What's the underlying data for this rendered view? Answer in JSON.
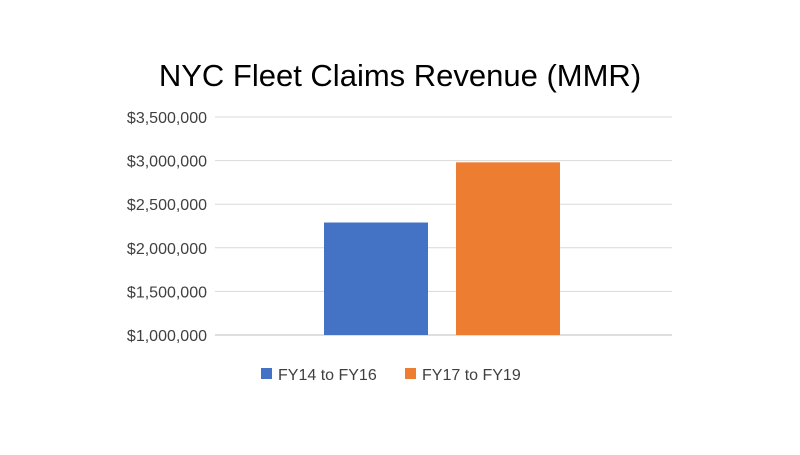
{
  "chart_data": {
    "type": "bar",
    "title": "NYC Fleet Claims Revenue (MMR)",
    "xlabel": "",
    "ylabel": "",
    "ylim": [
      1000000,
      3500000
    ],
    "yticks": [
      1000000,
      1500000,
      2000000,
      2500000,
      3000000,
      3500000
    ],
    "ytick_labels": [
      "$1,000,000",
      "$1,500,000",
      "$2,000,000",
      "$2,500,000",
      "$3,000,000",
      "$3,500,000"
    ],
    "grid": true,
    "legend_placement": "bottom",
    "series": [
      {
        "name": "FY14 to FY16",
        "values": [
          2290000
        ],
        "color": "#4472C4"
      },
      {
        "name": "FY17 to FY19",
        "values": [
          2980000
        ],
        "color": "#ED7D31"
      }
    ]
  }
}
